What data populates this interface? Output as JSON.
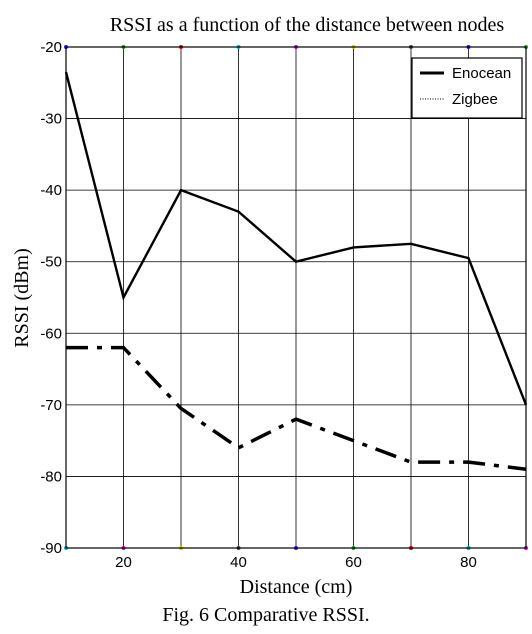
{
  "chart_data": {
    "type": "line",
    "title": "RSSI as a function of the distance between nodes",
    "xlabel": "Distance (cm)",
    "ylabel": "RSSI (dBm)",
    "xlim": [
      10,
      90
    ],
    "ylim": [
      -90,
      -20
    ],
    "xticks": [
      20,
      40,
      60,
      80
    ],
    "yticks": [
      -90,
      -80,
      -70,
      -60,
      -50,
      -40,
      -30,
      -20
    ],
    "x": [
      10,
      20,
      30,
      40,
      50,
      60,
      70,
      80,
      90
    ],
    "grid": true,
    "legend_position": "top-right",
    "series": [
      {
        "name": "Enocean",
        "style": "solid",
        "values": [
          -23.5,
          -55,
          -40,
          -43,
          -50,
          -48,
          -47.5,
          -49.5,
          -70
        ]
      },
      {
        "name": "Zigbee",
        "style": "dashdot",
        "values": [
          -62,
          -62,
          -70.5,
          -76,
          -72,
          -75,
          -78,
          -78,
          -79
        ]
      }
    ]
  },
  "caption": "Fig. 6 Comparative RSSI.",
  "colors": {
    "grid_marker_palette": [
      "#1a1aff",
      "#1a9e1a",
      "#e00000",
      "#00b4c8",
      "#c800c8",
      "#e0c800",
      "#444444"
    ]
  }
}
